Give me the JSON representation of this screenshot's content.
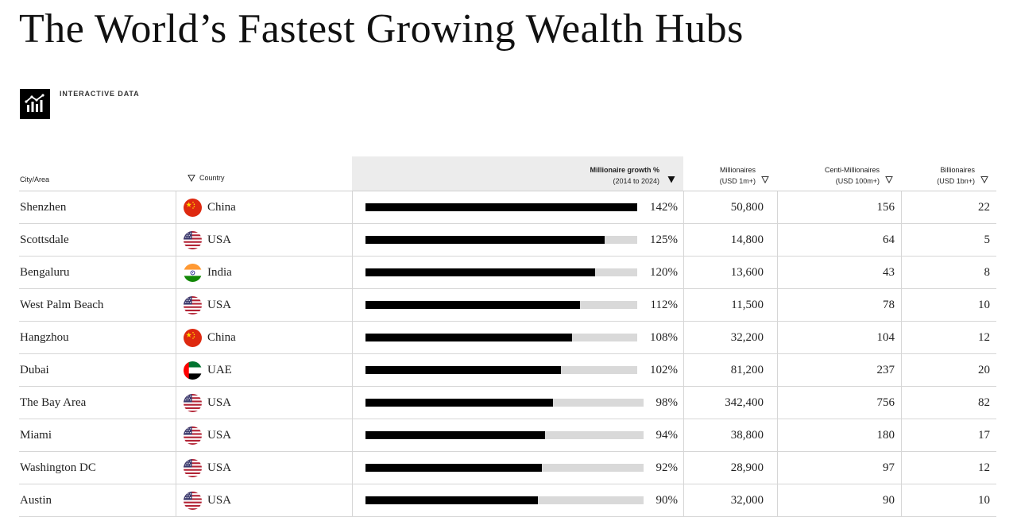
{
  "title": "The World’s Fastest Growing Wealth Hubs",
  "badge": {
    "label": "INTERACTIVE DATA",
    "icon": "chart-icon"
  },
  "table": {
    "headers": {
      "city": "City/Area",
      "country": "Country",
      "growth_line1": "Millionaire growth %",
      "growth_line2": "(2014 to 2024)",
      "millionaires_line1": "Millionaires",
      "millionaires_line2": "(USD 1m+)",
      "centi_line1": "Centi-Millionaires",
      "centi_line2": "(USD 100m+)",
      "billionaires_line1": "Billionaires",
      "billionaires_line2": "(USD 1bn+)"
    },
    "growth_max": 142,
    "rows": [
      {
        "city": "Shenzhen",
        "country": "China",
        "flag": "china-flag-icon",
        "growth": "142%",
        "growth_value": 142,
        "millionaires": "50,800",
        "centi": "156",
        "billionaires": "22"
      },
      {
        "city": "Scottsdale",
        "country": "USA",
        "flag": "usa-flag-icon",
        "growth": "125%",
        "growth_value": 125,
        "millionaires": "14,800",
        "centi": "64",
        "billionaires": "5"
      },
      {
        "city": "Bengaluru",
        "country": "India",
        "flag": "india-flag-icon",
        "growth": "120%",
        "growth_value": 120,
        "millionaires": "13,600",
        "centi": "43",
        "billionaires": "8"
      },
      {
        "city": "West Palm Beach",
        "country": "USA",
        "flag": "usa-flag-icon",
        "growth": "112%",
        "growth_value": 112,
        "millionaires": "11,500",
        "centi": "78",
        "billionaires": "10"
      },
      {
        "city": "Hangzhou",
        "country": "China",
        "flag": "china-flag-icon",
        "growth": "108%",
        "growth_value": 108,
        "millionaires": "32,200",
        "centi": "104",
        "billionaires": "12"
      },
      {
        "city": "Dubai",
        "country": "UAE",
        "flag": "uae-flag-icon",
        "growth": "102%",
        "growth_value": 102,
        "millionaires": "81,200",
        "centi": "237",
        "billionaires": "20"
      },
      {
        "city": "The Bay Area",
        "country": "USA",
        "flag": "usa-flag-icon",
        "growth": "98%",
        "growth_value": 98,
        "millionaires": "342,400",
        "centi": "756",
        "billionaires": "82"
      },
      {
        "city": "Miami",
        "country": "USA",
        "flag": "usa-flag-icon",
        "growth": "94%",
        "growth_value": 94,
        "millionaires": "38,800",
        "centi": "180",
        "billionaires": "17"
      },
      {
        "city": "Washington DC",
        "country": "USA",
        "flag": "usa-flag-icon",
        "growth": "92%",
        "growth_value": 92,
        "millionaires": "28,900",
        "centi": "97",
        "billionaires": "12"
      },
      {
        "city": "Austin",
        "country": "USA",
        "flag": "usa-flag-icon",
        "growth": "90%",
        "growth_value": 90,
        "millionaires": "32,000",
        "centi": "90",
        "billionaires": "10"
      }
    ]
  }
}
